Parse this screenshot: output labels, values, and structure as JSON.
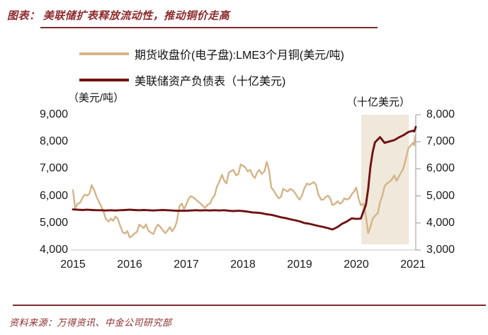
{
  "header": {
    "title": "图表： 美联储扩表释放流动性，推动铜价走高"
  },
  "legend": {
    "items": [
      {
        "label": "期货收盘价(电子盘):LME3个月铜(美元/吨)",
        "color": "#d4b488"
      },
      {
        "label": "美联储资产负债表（十亿美元)",
        "color": "#6f1112"
      }
    ]
  },
  "footer": {
    "source": "资料来源：万得资讯、中金公司研究部"
  },
  "colors": {
    "title_red": "#8e2b2e",
    "rule_red": "#7d2b2e",
    "copper_line": "#d4b488",
    "fed_line": "#6f1112",
    "highlight_fill": "#f0e8da",
    "x_axis_line": "#d9d9d9",
    "right_axis_line": "#a6a6a6"
  },
  "chart_data": {
    "type": "line",
    "title": "美联储扩表释放流动性，推动铜价走高",
    "grid": false,
    "legend_position": "top-left",
    "left_axis": {
      "unit": "（美元/吨）",
      "range": [
        4000,
        9000
      ],
      "ticks": [
        {
          "label": "9,000",
          "v": 9000
        },
        {
          "label": "8,000",
          "v": 8000
        },
        {
          "label": "7,000",
          "v": 7000
        },
        {
          "label": "6,000",
          "v": 6000
        },
        {
          "label": "5,000",
          "v": 5000
        },
        {
          "label": "4,000",
          "v": 4000
        }
      ]
    },
    "right_axis": {
      "unit": "（十亿美元）",
      "range": [
        3000,
        8000
      ],
      "ticks": [
        {
          "label": "8,000",
          "v": 8000
        },
        {
          "label": "7,000",
          "v": 7000
        },
        {
          "label": "6,000",
          "v": 6000
        },
        {
          "label": "5,000",
          "v": 5000
        },
        {
          "label": "4,000",
          "v": 4000
        },
        {
          "label": "3,000",
          "v": 3000
        }
      ]
    },
    "x_axis": {
      "range": [
        2015,
        2021.1
      ],
      "ticks": [
        {
          "label": "2015",
          "t": 2015
        },
        {
          "label": "2016",
          "t": 2016
        },
        {
          "label": "2017",
          "t": 2017
        },
        {
          "label": "2018",
          "t": 2018
        },
        {
          "label": "2019",
          "t": 2019
        },
        {
          "label": "2020",
          "t": 2020
        },
        {
          "label": "2021",
          "t": 2021
        }
      ]
    },
    "highlight_region": {
      "x_start": 2020.09,
      "x_end": 2020.93,
      "color": "#f0e8da"
    },
    "series": [
      {
        "name": "期货收盘价(电子盘):LME3个月铜(美元/吨)",
        "axis": "left",
        "color": "#d4b488",
        "points": [
          [
            2015.0,
            6210
          ],
          [
            2015.04,
            5540
          ],
          [
            2015.08,
            5700
          ],
          [
            2015.13,
            5760
          ],
          [
            2015.17,
            5940
          ],
          [
            2015.21,
            6050
          ],
          [
            2015.25,
            6010
          ],
          [
            2015.29,
            6080
          ],
          [
            2015.33,
            6400
          ],
          [
            2015.38,
            6180
          ],
          [
            2015.42,
            5950
          ],
          [
            2015.46,
            5780
          ],
          [
            2015.5,
            5610
          ],
          [
            2015.54,
            5420
          ],
          [
            2015.58,
            5150
          ],
          [
            2015.63,
            5050
          ],
          [
            2015.67,
            5160
          ],
          [
            2015.71,
            5080
          ],
          [
            2015.75,
            5240
          ],
          [
            2015.79,
            5160
          ],
          [
            2015.83,
            4920
          ],
          [
            2015.88,
            4650
          ],
          [
            2015.92,
            4610
          ],
          [
            2015.96,
            4700
          ],
          [
            2016.0,
            4470
          ],
          [
            2016.04,
            4510
          ],
          [
            2016.08,
            4600
          ],
          [
            2016.13,
            4670
          ],
          [
            2016.17,
            4940
          ],
          [
            2016.21,
            4880
          ],
          [
            2016.25,
            4810
          ],
          [
            2016.29,
            4950
          ],
          [
            2016.33,
            4720
          ],
          [
            2016.38,
            4640
          ],
          [
            2016.42,
            4590
          ],
          [
            2016.46,
            4810
          ],
          [
            2016.5,
            4940
          ],
          [
            2016.54,
            4860
          ],
          [
            2016.58,
            4750
          ],
          [
            2016.63,
            4620
          ],
          [
            2016.67,
            4720
          ],
          [
            2016.71,
            4850
          ],
          [
            2016.75,
            4690
          ],
          [
            2016.79,
            4810
          ],
          [
            2016.83,
            5020
          ],
          [
            2016.88,
            5620
          ],
          [
            2016.92,
            5720
          ],
          [
            2016.96,
            5510
          ],
          [
            2017.0,
            5680
          ],
          [
            2017.04,
            5890
          ],
          [
            2017.08,
            5990
          ],
          [
            2017.13,
            5940
          ],
          [
            2017.17,
            5860
          ],
          [
            2017.21,
            5790
          ],
          [
            2017.25,
            5720
          ],
          [
            2017.29,
            5640
          ],
          [
            2017.33,
            5560
          ],
          [
            2017.38,
            5680
          ],
          [
            2017.42,
            5720
          ],
          [
            2017.46,
            5910
          ],
          [
            2017.5,
            6010
          ],
          [
            2017.54,
            6340
          ],
          [
            2017.58,
            6510
          ],
          [
            2017.63,
            6780
          ],
          [
            2017.67,
            6560
          ],
          [
            2017.71,
            6460
          ],
          [
            2017.75,
            6860
          ],
          [
            2017.79,
            6920
          ],
          [
            2017.83,
            6960
          ],
          [
            2017.88,
            6760
          ],
          [
            2017.92,
            6810
          ],
          [
            2017.96,
            7160
          ],
          [
            2018.0,
            7120
          ],
          [
            2018.04,
            7060
          ],
          [
            2018.08,
            6910
          ],
          [
            2018.13,
            6960
          ],
          [
            2018.17,
            6760
          ],
          [
            2018.21,
            6660
          ],
          [
            2018.25,
            6860
          ],
          [
            2018.29,
            6960
          ],
          [
            2018.33,
            6810
          ],
          [
            2018.38,
            6910
          ],
          [
            2018.42,
            7260
          ],
          [
            2018.46,
            6960
          ],
          [
            2018.5,
            6310
          ],
          [
            2018.54,
            6210
          ],
          [
            2018.58,
            6060
          ],
          [
            2018.63,
            5910
          ],
          [
            2018.67,
            5960
          ],
          [
            2018.71,
            6260
          ],
          [
            2018.75,
            6210
          ],
          [
            2018.79,
            6160
          ],
          [
            2018.83,
            6260
          ],
          [
            2018.88,
            6210
          ],
          [
            2018.92,
            6110
          ],
          [
            2018.96,
            5960
          ],
          [
            2019.0,
            5860
          ],
          [
            2019.04,
            6010
          ],
          [
            2019.08,
            6260
          ],
          [
            2019.13,
            6460
          ],
          [
            2019.17,
            6410
          ],
          [
            2019.21,
            6460
          ],
          [
            2019.25,
            6510
          ],
          [
            2019.29,
            6410
          ],
          [
            2019.33,
            6060
          ],
          [
            2019.38,
            5860
          ],
          [
            2019.42,
            5860
          ],
          [
            2019.46,
            5960
          ],
          [
            2019.5,
            6010
          ],
          [
            2019.54,
            5910
          ],
          [
            2019.58,
            5660
          ],
          [
            2019.63,
            5710
          ],
          [
            2019.67,
            5810
          ],
          [
            2019.71,
            5710
          ],
          [
            2019.75,
            5760
          ],
          [
            2019.79,
            5910
          ],
          [
            2019.83,
            5860
          ],
          [
            2019.88,
            5910
          ],
          [
            2019.92,
            6060
          ],
          [
            2019.96,
            6160
          ],
          [
            2020.0,
            6310
          ],
          [
            2020.04,
            5910
          ],
          [
            2020.08,
            5660
          ],
          [
            2020.13,
            5710
          ],
          [
            2020.17,
            5260
          ],
          [
            2020.21,
            4620
          ],
          [
            2020.25,
            4860
          ],
          [
            2020.29,
            5160
          ],
          [
            2020.33,
            5260
          ],
          [
            2020.38,
            5360
          ],
          [
            2020.42,
            5760
          ],
          [
            2020.46,
            6010
          ],
          [
            2020.5,
            6360
          ],
          [
            2020.54,
            6460
          ],
          [
            2020.58,
            6510
          ],
          [
            2020.63,
            6610
          ],
          [
            2020.67,
            6760
          ],
          [
            2020.71,
            6560
          ],
          [
            2020.75,
            6710
          ],
          [
            2020.79,
            6860
          ],
          [
            2020.83,
            7010
          ],
          [
            2020.88,
            7410
          ],
          [
            2020.92,
            7760
          ],
          [
            2020.96,
            7860
          ],
          [
            2021.0,
            7960
          ],
          [
            2021.02,
            7870
          ],
          [
            2021.04,
            8230
          ]
        ]
      },
      {
        "name": "美联储资产负债表（十亿美元)",
        "axis": "right",
        "color": "#6f1112",
        "points": [
          [
            2015.0,
            4500
          ],
          [
            2015.08,
            4490
          ],
          [
            2015.17,
            4480
          ],
          [
            2015.25,
            4490
          ],
          [
            2015.33,
            4480
          ],
          [
            2015.42,
            4470
          ],
          [
            2015.5,
            4470
          ],
          [
            2015.58,
            4460
          ],
          [
            2015.67,
            4470
          ],
          [
            2015.75,
            4460
          ],
          [
            2015.83,
            4470
          ],
          [
            2015.92,
            4480
          ],
          [
            2016.0,
            4490
          ],
          [
            2016.08,
            4480
          ],
          [
            2016.17,
            4470
          ],
          [
            2016.25,
            4480
          ],
          [
            2016.33,
            4470
          ],
          [
            2016.42,
            4460
          ],
          [
            2016.5,
            4470
          ],
          [
            2016.58,
            4480
          ],
          [
            2016.67,
            4470
          ],
          [
            2016.75,
            4460
          ],
          [
            2016.83,
            4450
          ],
          [
            2016.92,
            4450
          ],
          [
            2017.0,
            4450
          ],
          [
            2017.08,
            4460
          ],
          [
            2017.17,
            4470
          ],
          [
            2017.25,
            4460
          ],
          [
            2017.33,
            4470
          ],
          [
            2017.42,
            4460
          ],
          [
            2017.5,
            4470
          ],
          [
            2017.58,
            4460
          ],
          [
            2017.67,
            4470
          ],
          [
            2017.75,
            4450
          ],
          [
            2017.83,
            4440
          ],
          [
            2017.92,
            4450
          ],
          [
            2018.0,
            4440
          ],
          [
            2018.08,
            4420
          ],
          [
            2018.17,
            4390
          ],
          [
            2018.25,
            4380
          ],
          [
            2018.33,
            4360
          ],
          [
            2018.42,
            4320
          ],
          [
            2018.5,
            4300
          ],
          [
            2018.58,
            4260
          ],
          [
            2018.67,
            4210
          ],
          [
            2018.75,
            4180
          ],
          [
            2018.83,
            4140
          ],
          [
            2018.92,
            4100
          ],
          [
            2019.0,
            4060
          ],
          [
            2019.08,
            4000
          ],
          [
            2019.17,
            3970
          ],
          [
            2019.25,
            3930
          ],
          [
            2019.33,
            3890
          ],
          [
            2019.42,
            3850
          ],
          [
            2019.5,
            3810
          ],
          [
            2019.58,
            3760
          ],
          [
            2019.67,
            3850
          ],
          [
            2019.75,
            3970
          ],
          [
            2019.83,
            4050
          ],
          [
            2019.92,
            4170
          ],
          [
            2020.0,
            4150
          ],
          [
            2020.08,
            4160
          ],
          [
            2020.17,
            4670
          ],
          [
            2020.21,
            5250
          ],
          [
            2020.25,
            6080
          ],
          [
            2020.29,
            6620
          ],
          [
            2020.33,
            6980
          ],
          [
            2020.42,
            7170
          ],
          [
            2020.5,
            6960
          ],
          [
            2020.58,
            7010
          ],
          [
            2020.67,
            7060
          ],
          [
            2020.75,
            7160
          ],
          [
            2020.83,
            7240
          ],
          [
            2020.92,
            7360
          ],
          [
            2021.0,
            7410
          ],
          [
            2021.02,
            7380
          ],
          [
            2021.04,
            7480
          ],
          [
            2021.05,
            7550
          ]
        ]
      }
    ]
  }
}
